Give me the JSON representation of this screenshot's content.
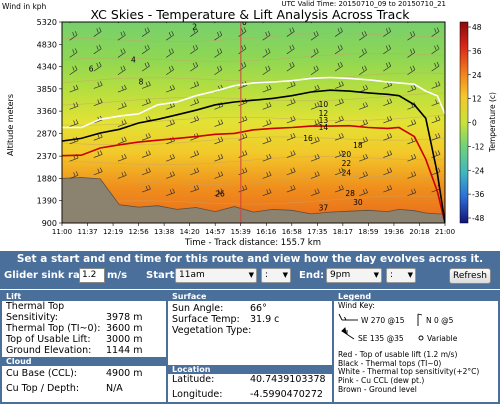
{
  "chart": {
    "corner_label": "Wind in kph",
    "title": "XC Skies - Temperature & Lift Analysis Across Track",
    "valid_time": "UTC Valid Time: 20150710_09 to 20150710_21",
    "y_axis_label": "Altitude meters",
    "x_axis_label": "Time - Track distance: 155.7 km",
    "colorbar_label": "Temperature (c)"
  },
  "chart_data": {
    "type": "heatmap",
    "title": "XC Skies - Temperature & Lift Analysis Across Track",
    "xlabel": "Time - Track distance: 155.7 km",
    "ylabel": "Altitude meters",
    "x_ticks": [
      "11:00",
      "11:37",
      "12:19",
      "12:56",
      "13:38",
      "14:20",
      "14:57",
      "15:39",
      "16:16",
      "16:58",
      "17:35",
      "18:17",
      "18:59",
      "19:36",
      "20:18",
      "21:00"
    ],
    "y_ticks": [
      "900",
      "1390",
      "1880",
      "2370",
      "2870",
      "3360",
      "3850",
      "4340",
      "4830",
      "5320"
    ],
    "ylim": [
      900,
      5320
    ],
    "colorbar_ticks": [
      "48",
      "36",
      "24",
      "12",
      "0",
      "-12",
      "-24",
      "-36",
      "-48"
    ],
    "colorbar_range": [
      -48,
      48
    ],
    "colorbar_label": "Temperature (c)",
    "series": [
      {
        "name": "Red - Top of usable lift (1.2 m/s)",
        "color": "#cc0000",
        "x": [
          0,
          0.05,
          0.1,
          0.15,
          0.2,
          0.25,
          0.3,
          0.35,
          0.4,
          0.45,
          0.5,
          0.55,
          0.6,
          0.65,
          0.7,
          0.75,
          0.8,
          0.85,
          0.88,
          0.92,
          0.95,
          0.98,
          1.0
        ],
        "y": [
          2380,
          2390,
          2550,
          2620,
          2680,
          2720,
          2760,
          2800,
          2850,
          2870,
          2950,
          2980,
          3000,
          3030,
          3030,
          3040,
          3000,
          2980,
          3000,
          2800,
          2300,
          1600,
          900
        ]
      },
      {
        "name": "Black - Thermal tops (TI~0)",
        "color": "#000000",
        "x": [
          0,
          0.05,
          0.1,
          0.15,
          0.2,
          0.25,
          0.3,
          0.35,
          0.4,
          0.45,
          0.5,
          0.55,
          0.6,
          0.65,
          0.7,
          0.75,
          0.8,
          0.85,
          0.88,
          0.92,
          0.95,
          0.98,
          1.0
        ],
        "y": [
          2700,
          2760,
          2880,
          2960,
          3100,
          3180,
          3280,
          3380,
          3500,
          3560,
          3600,
          3640,
          3700,
          3780,
          3820,
          3800,
          3760,
          3730,
          3700,
          3500,
          3200,
          2000,
          900
        ]
      },
      {
        "name": "White - Thermal top sensitivity(+2°C)",
        "color": "#ffffff",
        "x": [
          0,
          0.05,
          0.1,
          0.15,
          0.2,
          0.25,
          0.3,
          0.35,
          0.4,
          0.45,
          0.5,
          0.55,
          0.6,
          0.65,
          0.7,
          0.75,
          0.8,
          0.85,
          0.88,
          0.92,
          0.95,
          0.98,
          1.0
        ],
        "y": [
          3000,
          3000,
          3180,
          3250,
          3300,
          3500,
          3560,
          3700,
          3800,
          3920,
          3980,
          4000,
          4030,
          4080,
          4100,
          4080,
          4050,
          4000,
          3980,
          3950,
          3800,
          3700,
          3300
        ]
      },
      {
        "name": "Brown - Ground level",
        "color": "#7a6a4a",
        "x": [
          0,
          0.05,
          0.1,
          0.15,
          0.2,
          0.25,
          0.3,
          0.35,
          0.4,
          0.45,
          0.5,
          0.55,
          0.6,
          0.65,
          0.7,
          0.75,
          0.8,
          0.85,
          0.88,
          0.92,
          0.95,
          0.98,
          1.0
        ],
        "y": [
          1880,
          1900,
          1870,
          1300,
          1250,
          1280,
          1200,
          1240,
          1150,
          1260,
          1140,
          1200,
          1180,
          1100,
          1140,
          1160,
          1180,
          1150,
          1200,
          1170,
          1120,
          1100,
          1100
        ]
      }
    ],
    "annotations": [
      "2",
      "0",
      "4",
      "6",
      "8",
      "10",
      "12",
      "13",
      "14",
      "16",
      "18",
      "20",
      "22",
      "24",
      "26",
      "28",
      "30",
      "37"
    ]
  },
  "controls": {
    "title": "Set a start and end time for this route and view how the day evolves across it.",
    "sink_label": "Glider sink rate:",
    "sink_value": "1.2",
    "sink_unit": "m/s",
    "start_label": "Start:",
    "start_value": "11am",
    "start_min": ":",
    "end_label": "End:",
    "end_value": "9pm",
    "end_min": ":",
    "refresh_label": "Refresh"
  },
  "lift": {
    "header": "Lift",
    "rows": [
      {
        "k": "Thermal Top Sensitivity:",
        "v": "3978 m"
      },
      {
        "k": "Thermal Top (TI~0):",
        "v": "3600 m"
      },
      {
        "k": "Top of Usable Lift:",
        "v": "3000 m"
      },
      {
        "k": "Ground Elevation:",
        "v": "1144 m"
      }
    ]
  },
  "cloud": {
    "header": "Cloud",
    "rows": [
      {
        "k": "Cu Base (CCL):",
        "v": "4900 m"
      },
      {
        "k": "Cu Top / Depth:",
        "v": "N/A"
      }
    ]
  },
  "surface": {
    "header": "Surface",
    "rows": [
      {
        "k": "Sun Angle:",
        "v": "66°"
      },
      {
        "k": "Surface Temp:",
        "v": "31.9 c"
      },
      {
        "k": "Vegetation Type:",
        "v": ""
      }
    ]
  },
  "location": {
    "header": "Location",
    "rows": [
      {
        "k": "Latitude:",
        "v": "40.7439103378"
      },
      {
        "k": "Longitude:",
        "v": "-4.5990470272"
      }
    ]
  },
  "legend": {
    "header": "Legend",
    "wind_key": "Wind Key:",
    "w1": "W 270 @15",
    "w2": "N 0 @5",
    "w3": "SE 135 @35",
    "w4": "Variable",
    "lines": [
      "Red - Top of usable lift (1.2 m/s)",
      "Black - Thermal tops (TI~0)",
      "White - Thermal top sensitivity(+2°C)",
      "Pink - Cu CCL (dew pt.)",
      "Brown - Ground level"
    ]
  },
  "colors": {
    "panel_blue": "#4a6f9a",
    "red_line": "#cc0000",
    "ground": "#8c8270",
    "vertical_marker": "#d04040"
  }
}
